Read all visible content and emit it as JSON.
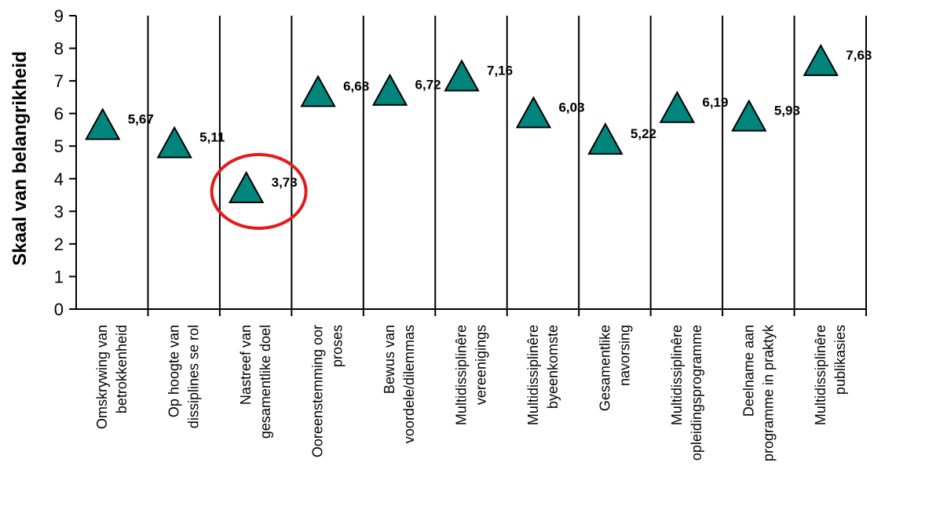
{
  "chart_data": {
    "type": "scatter",
    "title": "",
    "xlabel": "",
    "ylabel": "Skaal van belangrikheid",
    "ylim": [
      0,
      9
    ],
    "y_ticks": [
      "0",
      "1",
      "2",
      "3",
      "4",
      "5",
      "6",
      "7",
      "8",
      "9"
    ],
    "grid": "vertical",
    "marker": "triangle",
    "marker_color": "#00857d",
    "highlight_color": "#e31b1b",
    "highlighted_index": 2,
    "categories": [
      [
        "Omskrywing van",
        "betrokkenheid"
      ],
      [
        "Op hoogte van",
        "dissiplines se rol"
      ],
      [
        "Nastreef van",
        "gesamentlike doel"
      ],
      [
        "Ooreenstemming oor",
        "proses"
      ],
      [
        "Bewus van",
        "voordele/dilemmas"
      ],
      [
        "Multidissiplinêre",
        "vereenigings"
      ],
      [
        "Multidissiplinêre",
        "byeenkomste"
      ],
      [
        "Gesamentlike",
        "navorsing"
      ],
      [
        "Multidissiplinêre",
        "opleidingsprogramme"
      ],
      [
        "Deelname aan",
        "programme in praktyk"
      ],
      [
        "Multidissiplinêre",
        "publikasies"
      ]
    ],
    "values": [
      5.67,
      5.11,
      3.73,
      6.68,
      6.72,
      7.16,
      6.03,
      5.22,
      6.19,
      5.93,
      7.63
    ],
    "value_labels": [
      "5,67",
      "5,11",
      "3,73",
      "6,68",
      "6,72",
      "7,16",
      "6,03",
      "5,22",
      "6,19",
      "5,93",
      "7,63"
    ]
  }
}
